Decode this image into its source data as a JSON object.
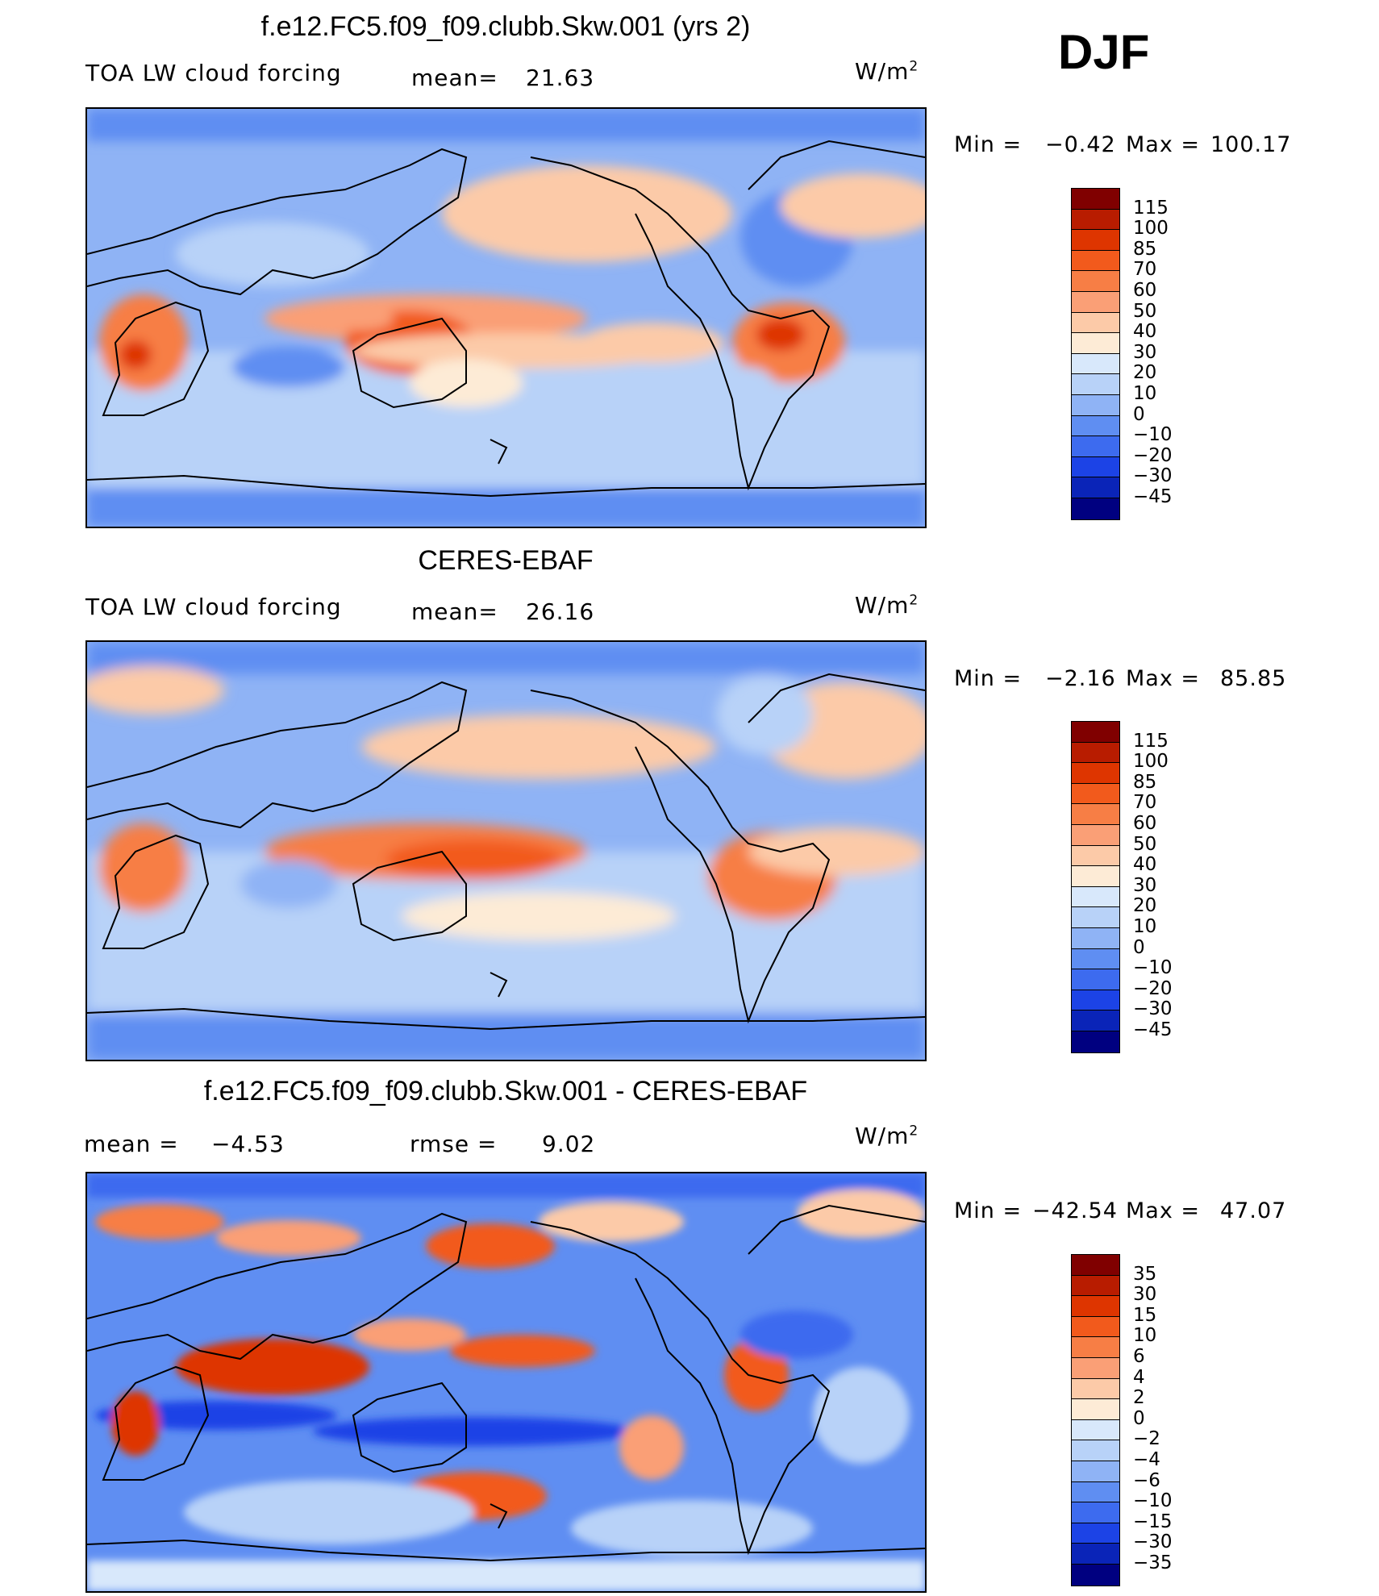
{
  "season": "DJF",
  "units": "W/m",
  "units_sup": "2",
  "panels": [
    {
      "title": "f.e12.FC5.f09_f09.clubb.Skw.001 (yrs 2)",
      "left_label": "TOA LW cloud forcing",
      "stat1_label": "mean=",
      "stat1_value": "21.63",
      "stat2_label": "",
      "stat2_value": "",
      "min_label": "Min =",
      "min_value": "−0.42",
      "max_label": "Max =",
      "max_value": "100.17",
      "colorbar_labels": [
        "115",
        "100",
        "85",
        "70",
        "60",
        "50",
        "40",
        "30",
        "20",
        "10",
        "0",
        "−10",
        "−20",
        "−30",
        "−45"
      ]
    },
    {
      "title": "CERES-EBAF",
      "left_label": "TOA LW cloud forcing",
      "stat1_label": "mean=",
      "stat1_value": "26.16",
      "stat2_label": "",
      "stat2_value": "",
      "min_label": "Min =",
      "min_value": "−2.16",
      "max_label": "Max =",
      "max_value": "85.85",
      "colorbar_labels": [
        "115",
        "100",
        "85",
        "70",
        "60",
        "50",
        "40",
        "30",
        "20",
        "10",
        "0",
        "−10",
        "−20",
        "−30",
        "−45"
      ]
    },
    {
      "title": "f.e12.FC5.f09_f09.clubb.Skw.001 - CERES-EBAF",
      "left_label": "mean =",
      "stat1_label": "",
      "stat1_value": "−4.53",
      "stat2_label": "rmse =",
      "stat2_value": "9.02",
      "min_label": "Min =",
      "min_value": "−42.54",
      "max_label": "Max =",
      "max_value": "47.07",
      "colorbar_labels": [
        "35",
        "30",
        "15",
        "10",
        "6",
        "4",
        "2",
        "0",
        "−2",
        "−4",
        "−6",
        "−10",
        "−15",
        "−30",
        "−35"
      ]
    }
  ],
  "colorbar_colors": [
    "#800000",
    "#b81c00",
    "#de3500",
    "#f25a1c",
    "#f77e45",
    "#fa9f76",
    "#fccaa8",
    "#fdebd6",
    "#d8e8fb",
    "#b8d2f8",
    "#8fb3f5",
    "#5f8ef2",
    "#3d6bef",
    "#1c43e6",
    "#0a24b8",
    "#000080"
  ]
}
